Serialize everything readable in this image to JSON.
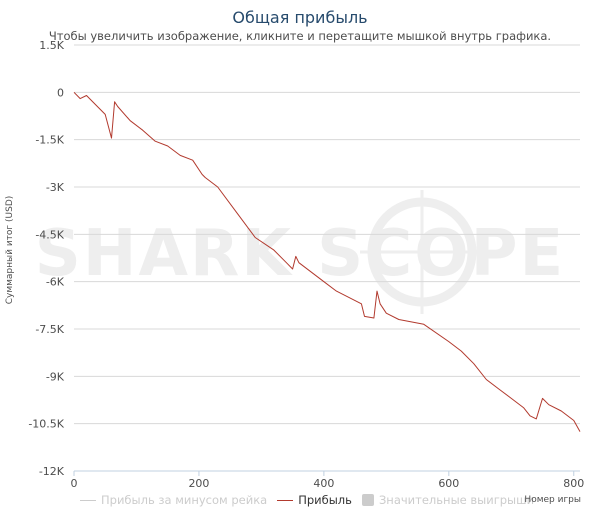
{
  "chart_data": {
    "type": "line",
    "title": "Общая прибыль",
    "subtitle": "Чтобы увеличить изображение, кликните и перетащите мышкой внутрь графика.",
    "ylabel": "Суммарный итог (USD)",
    "xlabel": "Номер игры",
    "xlim": [
      0,
      810
    ],
    "ylim": [
      -12000,
      1500
    ],
    "x_ticks": [
      0,
      200,
      400,
      600,
      800
    ],
    "x_tick_labels": [
      "0",
      "200",
      "400",
      "600",
      "800"
    ],
    "y_ticks": [
      1500,
      0,
      -1500,
      -3000,
      -4500,
      -6000,
      -7500,
      -9000,
      -10500,
      -12000
    ],
    "y_tick_labels": [
      "1.5K",
      "0",
      "-1.5K",
      "-3K",
      "-4.5K",
      "-6K",
      "-7.5K",
      "-9K",
      "-10.5K",
      "-12K"
    ],
    "grid": true,
    "legend_position": "bottom",
    "watermark": "SHARK SCOPE",
    "series": [
      {
        "name": "Прибыль",
        "color": "#b23a2e",
        "x": [
          0,
          10,
          20,
          35,
          50,
          60,
          65,
          70,
          90,
          110,
          130,
          150,
          170,
          190,
          205,
          210,
          230,
          260,
          290,
          320,
          340,
          350,
          355,
          360,
          380,
          400,
          420,
          440,
          460,
          465,
          480,
          485,
          490,
          500,
          520,
          560,
          600,
          620,
          640,
          660,
          680,
          700,
          720,
          730,
          740,
          750,
          760,
          780,
          800,
          810
        ],
        "y": [
          0,
          -200,
          -100,
          -400,
          -700,
          -1450,
          -300,
          -450,
          -900,
          -1200,
          -1550,
          -1700,
          -2000,
          -2150,
          -2600,
          -2700,
          -3000,
          -3800,
          -4600,
          -5000,
          -5400,
          -5600,
          -5200,
          -5400,
          -5700,
          -6000,
          -6300,
          -6500,
          -6700,
          -7100,
          -7150,
          -6300,
          -6700,
          -7000,
          -7200,
          -7350,
          -7900,
          -8200,
          -8600,
          -9100,
          -9400,
          -9700,
          -10000,
          -10250,
          -10350,
          -9700,
          -9900,
          -10100,
          -10400,
          -10750
        ]
      }
    ],
    "legend": [
      {
        "label": "Прибыль за минусом рейка",
        "symbol": "line",
        "color": "#cccccc",
        "active": false
      },
      {
        "label": "Прибыль",
        "symbol": "line",
        "color": "#b23a2e",
        "active": true
      },
      {
        "label": "Значительные выигрыши",
        "symbol": "box",
        "color": "#cccccc",
        "active": false
      }
    ]
  },
  "colors": {
    "title": "#274b6d",
    "grid": "#d8d8d8",
    "text": "#4d4d4d",
    "legend_inactive": "#cccccc",
    "legend_active": "#333333",
    "watermark": "#eeeeee"
  }
}
